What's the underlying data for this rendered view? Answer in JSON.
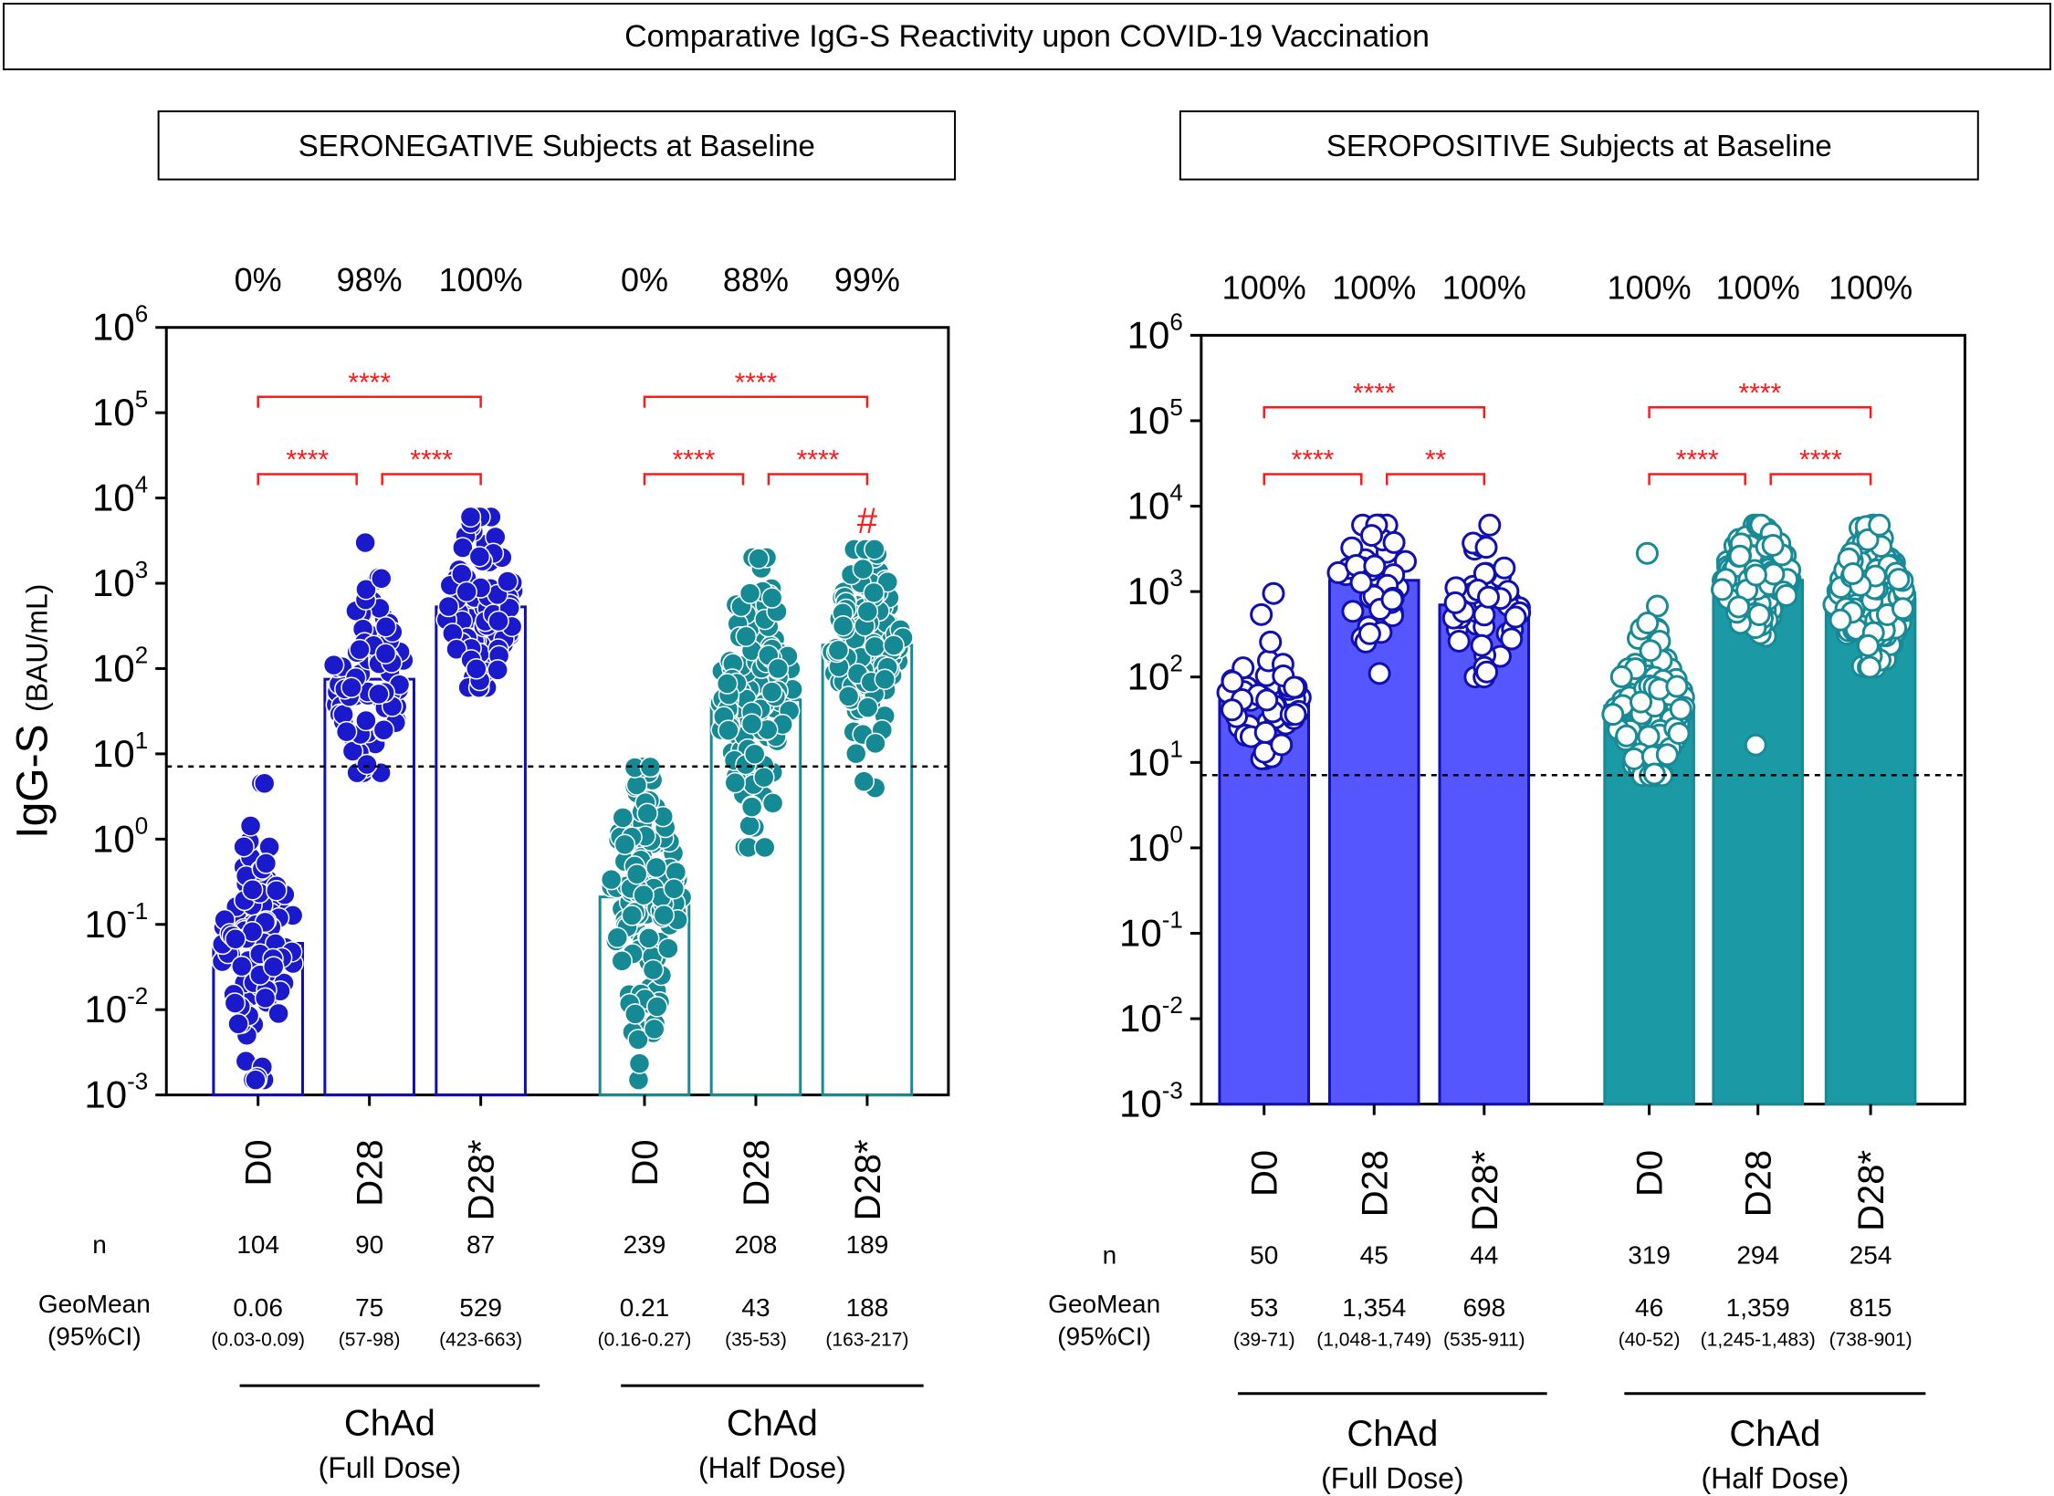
{
  "main_title": "Comparative IgG-S Reactivity upon COVID-19 Vaccination",
  "colors": {
    "blue": "#1010b0",
    "blue_fill": "#5656ff",
    "teal": "#178a96",
    "teal_fill": "#1b9aa6",
    "significance": "#ff1a1a"
  },
  "y_axis": {
    "label": "IgG-S",
    "unit": "(BAU/mL)",
    "scale": "log10",
    "tick_bases": [
      "10",
      "10",
      "10",
      "10",
      "10",
      "10",
      "10",
      "10",
      "10",
      "10"
    ],
    "tick_exponents": [
      "6",
      "5",
      "4",
      "3",
      "2",
      "1",
      "0",
      "-1",
      "-2",
      "-3"
    ]
  },
  "row_labels": {
    "n": "n",
    "geomean": "GeoMean",
    "ci": "(95%CI)"
  },
  "chart_data": [
    {
      "type": "bar",
      "title": "SERONEGATIVE Subjects at Baseline",
      "bar_style": "outline",
      "ylim": [
        0.001,
        1000000
      ],
      "threshold": 7.1,
      "ylabel": "IgG-S (BAU/mL)",
      "categories": [
        "D0",
        "D28",
        "D28",
        "D0",
        "D28",
        "D28"
      ],
      "category_marks": [
        "",
        "",
        "*",
        "",
        "",
        "*"
      ],
      "series": [
        {
          "name": "ChAd (Full Dose)",
          "group_label": "ChAd",
          "dose_label": "(Full  Dose)",
          "color": "blue",
          "percent_positive": [
            "0%",
            "98%",
            "100%"
          ],
          "n": [
            "104",
            "90",
            "87"
          ],
          "geomean_label": [
            "0.06",
            "75",
            "529"
          ],
          "geomean_values": [
            0.06,
            75,
            529
          ],
          "ci": [
            "(0.03-0.09)",
            "(57-98)",
            "(423-663)"
          ],
          "point_range": [
            [
              0.0015,
              4.5
            ],
            [
              6,
              3000
            ],
            [
              60,
              6000
            ]
          ],
          "hash_mark": [
            "",
            "",
            ""
          ]
        },
        {
          "name": "ChAd (Half Dose)",
          "group_label": "ChAd",
          "dose_label": "(Half  Dose)",
          "color": "teal",
          "percent_positive": [
            "0%",
            "88%",
            "99%"
          ],
          "n": [
            "239",
            "208",
            "189"
          ],
          "geomean_label": [
            "0.21",
            "43",
            "188"
          ],
          "geomean_values": [
            0.21,
            43,
            188
          ],
          "ci": [
            "(0.16-0.27)",
            "(35-53)",
            "(163-217)"
          ],
          "point_range": [
            [
              0.0015,
              7
            ],
            [
              0.8,
              2000
            ],
            [
              4,
              2500
            ]
          ],
          "hash_mark": [
            "",
            "",
            "#"
          ]
        }
      ],
      "significance": [
        {
          "group": 0,
          "from": 0,
          "to": 1,
          "label": "****"
        },
        {
          "group": 0,
          "from": 1,
          "to": 2,
          "label": "****"
        },
        {
          "group": 0,
          "from": 0,
          "to": 2,
          "label": "****"
        },
        {
          "group": 1,
          "from": 0,
          "to": 1,
          "label": "****"
        },
        {
          "group": 1,
          "from": 1,
          "to": 2,
          "label": "****"
        },
        {
          "group": 1,
          "from": 0,
          "to": 2,
          "label": "****"
        }
      ]
    },
    {
      "type": "bar",
      "title": "SEROPOSITIVE Subjects at Baseline",
      "bar_style": "filled",
      "ylim": [
        0.001,
        1000000
      ],
      "threshold": 7.1,
      "ylabel": "IgG-S (BAU/mL)",
      "categories": [
        "D0",
        "D28",
        "D28",
        "D0",
        "D28",
        "D28"
      ],
      "category_marks": [
        "",
        "",
        "*",
        "",
        "",
        "*"
      ],
      "series": [
        {
          "name": "ChAd (Full Dose)",
          "group_label": "ChAd",
          "dose_label": "(Full  Dose)",
          "color": "blue",
          "percent_positive": [
            "100%",
            "100%",
            "100%"
          ],
          "n": [
            "50",
            "45",
            "44"
          ],
          "geomean_label": [
            "53",
            "1,354",
            "698"
          ],
          "geomean_values": [
            53,
            1354,
            698
          ],
          "ci": [
            "(39-71)",
            "(1,048-1,749)",
            "(535-911)"
          ],
          "point_range": [
            [
              11,
              950
            ],
            [
              110,
              6000
            ],
            [
              100,
              6000
            ]
          ],
          "hash_mark": [
            "",
            "",
            ""
          ]
        },
        {
          "name": "ChAd (Half Dose)",
          "group_label": "ChAd",
          "dose_label": "(Half  Dose)",
          "color": "teal",
          "percent_positive": [
            "100%",
            "100%",
            "100%"
          ],
          "n": [
            "319",
            "294",
            "254"
          ],
          "geomean_label": [
            "46",
            "1,359",
            "815"
          ],
          "geomean_values": [
            46,
            1359,
            815
          ],
          "ci": [
            "(40-52)",
            "(1,245-1,483)",
            "(738-901)"
          ],
          "point_range": [
            [
              7,
              2800
            ],
            [
              16,
              6000
            ],
            [
              130,
              6000
            ]
          ],
          "hash_mark": [
            "",
            "",
            ""
          ]
        }
      ],
      "significance": [
        {
          "group": 0,
          "from": 0,
          "to": 1,
          "label": "****"
        },
        {
          "group": 0,
          "from": 1,
          "to": 2,
          "label": "**"
        },
        {
          "group": 0,
          "from": 0,
          "to": 2,
          "label": "****"
        },
        {
          "group": 1,
          "from": 0,
          "to": 1,
          "label": "****"
        },
        {
          "group": 1,
          "from": 1,
          "to": 2,
          "label": "****"
        },
        {
          "group": 1,
          "from": 0,
          "to": 2,
          "label": "****"
        }
      ]
    }
  ]
}
